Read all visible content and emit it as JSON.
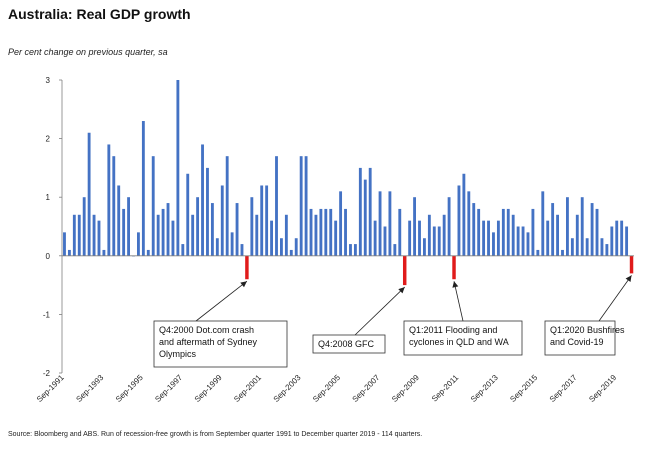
{
  "title": "Australia: Real GDP growth",
  "subtitle": "Per cent change on previous quarter, sa",
  "source": "Source: Bloomberg and ABS. Run of recession-free growth is from September quarter 1991 to December quarter 2019 - 114 quarters.",
  "chart_data": {
    "type": "bar",
    "ylim": [
      -2,
      3
    ],
    "yticks": [
      3,
      2,
      1,
      0,
      -1,
      -2
    ],
    "colors": {
      "positive": "#4472C4",
      "negative": "#E01B1B"
    },
    "xtick_labels": [
      {
        "label": "Sep-1991",
        "index": 0
      },
      {
        "label": "Sep-1993",
        "index": 8
      },
      {
        "label": "Sep-1995",
        "index": 16
      },
      {
        "label": "Sep-1997",
        "index": 24
      },
      {
        "label": "Sep-1999",
        "index": 32
      },
      {
        "label": "Sep-2001",
        "index": 40
      },
      {
        "label": "Sep-2003",
        "index": 48
      },
      {
        "label": "Sep-2005",
        "index": 56
      },
      {
        "label": "Sep-2007",
        "index": 64
      },
      {
        "label": "Sep-2009",
        "index": 72
      },
      {
        "label": "Sep-2011",
        "index": 80
      },
      {
        "label": "Sep-2013",
        "index": 88
      },
      {
        "label": "Sep-2015",
        "index": 96
      },
      {
        "label": "Sep-2017",
        "index": 104
      },
      {
        "label": "Sep-2019",
        "index": 112
      }
    ],
    "values": [
      0.4,
      0.1,
      0.7,
      0.7,
      1.0,
      2.1,
      0.7,
      0.6,
      0.1,
      1.9,
      1.7,
      1.2,
      0.8,
      1.0,
      0.0,
      0.4,
      2.3,
      0.1,
      1.7,
      0.7,
      0.8,
      0.9,
      0.6,
      3.0,
      0.2,
      1.4,
      0.7,
      1.0,
      1.9,
      1.5,
      0.9,
      0.3,
      1.2,
      1.7,
      0.4,
      0.9,
      0.2,
      -0.4,
      1.0,
      0.7,
      1.2,
      1.2,
      0.6,
      1.7,
      0.3,
      0.7,
      0.1,
      0.3,
      1.7,
      1.7,
      0.8,
      0.7,
      0.8,
      0.8,
      0.8,
      0.6,
      1.1,
      0.8,
      0.2,
      0.2,
      1.5,
      1.3,
      1.5,
      0.6,
      1.1,
      0.5,
      1.1,
      0.2,
      0.8,
      -0.5,
      0.6,
      1.0,
      0.6,
      0.3,
      0.7,
      0.5,
      0.5,
      0.7,
      1.0,
      -0.4,
      1.2,
      1.4,
      1.1,
      0.9,
      0.8,
      0.6,
      0.6,
      0.4,
      0.6,
      0.8,
      0.8,
      0.7,
      0.5,
      0.5,
      0.4,
      0.8,
      0.1,
      1.1,
      0.6,
      0.9,
      0.7,
      0.1,
      1.0,
      0.3,
      0.7,
      1.0,
      0.3,
      0.9,
      0.8,
      0.3,
      0.2,
      0.5,
      0.6,
      0.6,
      0.5,
      -0.3
    ],
    "annotations": [
      {
        "index": 37,
        "lines": [
          "Q4:2000 Dot.com crash",
          "and aftermath of Sydney",
          "Olympics"
        ]
      },
      {
        "index": 69,
        "lines": [
          "Q4:2008 GFC"
        ]
      },
      {
        "index": 79,
        "lines": [
          "Q1:2011 Flooding and",
          "cyclones in QLD and WA"
        ]
      },
      {
        "index": 115,
        "lines": [
          "Q1:2020 Bushfires",
          "and Covid-19"
        ]
      }
    ]
  }
}
